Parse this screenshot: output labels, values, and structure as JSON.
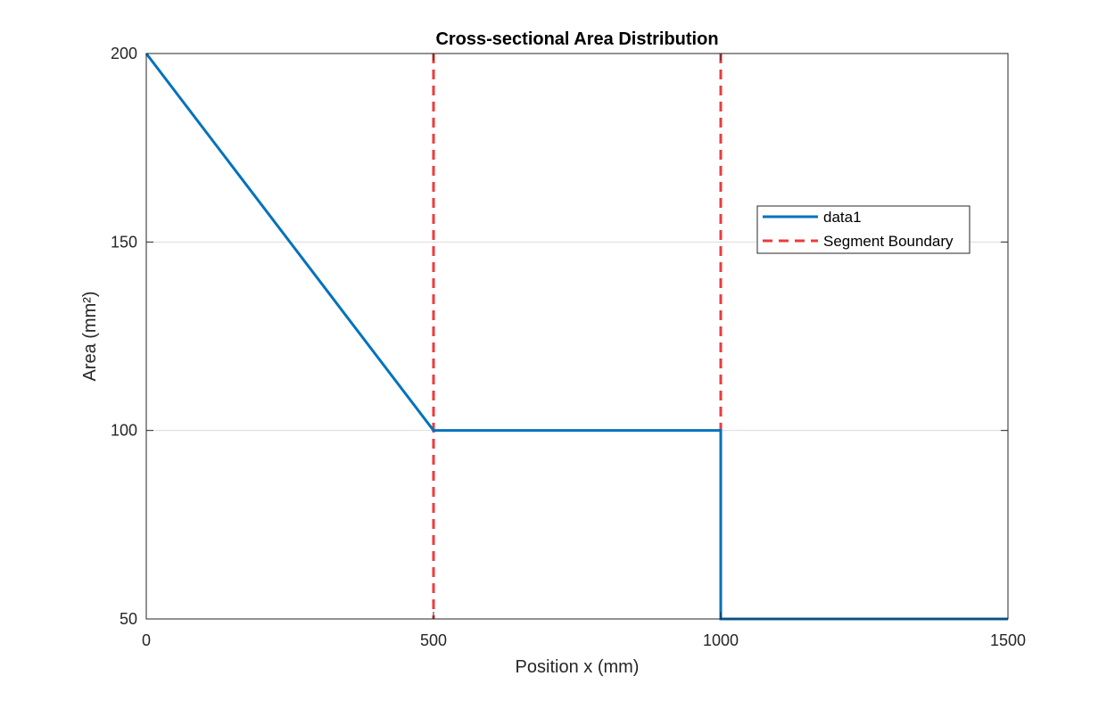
{
  "chart_data": {
    "type": "line",
    "title": "Cross-sectional Area Distribution",
    "xlabel": "Position x (mm)",
    "ylabel": "Area (mm²)",
    "xlim": [
      0,
      1500
    ],
    "ylim": [
      50,
      200
    ],
    "xticks": [
      0,
      500,
      1000,
      1500
    ],
    "yticks": [
      50,
      100,
      150,
      200
    ],
    "grid": "y-major",
    "legend_position": "upper-right",
    "series": [
      {
        "name": "data1",
        "color": "#0072BD",
        "style": "solid",
        "x": [
          0,
          500,
          1000,
          1000,
          1500
        ],
        "y": [
          200,
          100,
          100,
          50,
          50
        ]
      }
    ],
    "vlines": [
      {
        "name": "Segment Boundary",
        "color": "#EE3B3B",
        "style": "dashed",
        "x": 500
      },
      {
        "name": "Segment Boundary",
        "color": "#EE3B3B",
        "style": "dashed",
        "x": 1000
      }
    ],
    "legend": [
      {
        "label": "data1",
        "color": "#0072BD",
        "style": "solid"
      },
      {
        "label": "Segment Boundary",
        "color": "#EE3B3B",
        "style": "dashed"
      }
    ]
  }
}
